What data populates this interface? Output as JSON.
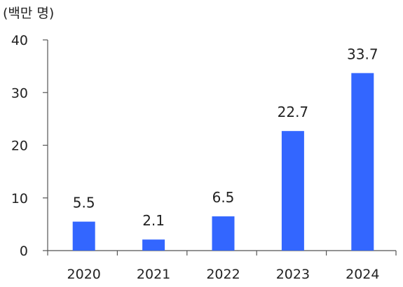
{
  "chart_data": {
    "type": "bar",
    "unit_label": "(백만 명)",
    "categories": [
      "2020",
      "2021",
      "2022",
      "2023",
      "2024"
    ],
    "values": [
      5.5,
      2.1,
      6.5,
      22.7,
      33.7
    ],
    "data_labels": [
      "5.5",
      "2.1",
      "6.5",
      "22.7",
      "33.7"
    ],
    "y_ticks": [
      0,
      10,
      20,
      30,
      40
    ],
    "ylim": [
      0,
      40
    ],
    "grid": false,
    "bar_color": "#3366ff",
    "axis_color": "#555555"
  }
}
